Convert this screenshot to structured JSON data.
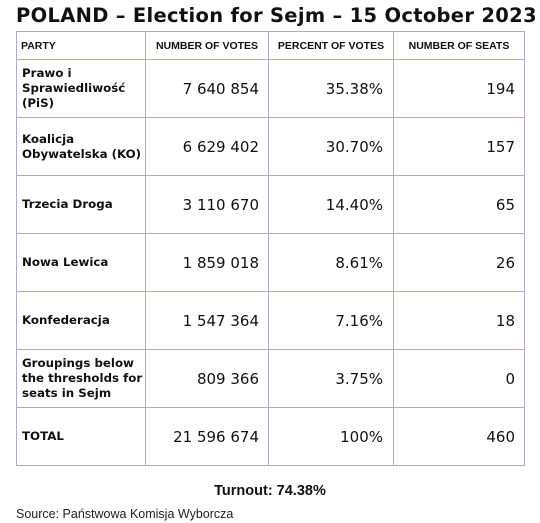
{
  "title": "POLAND – Election for Sejm – 15 October 2023",
  "table": {
    "headers": [
      "PARTY",
      "NUMBER OF VOTES",
      "PERCENT OF VOTES",
      "NUMBER OF SEATS"
    ],
    "rows": [
      {
        "party": "Prawo i Sprawiedliwość (PiS)",
        "votes": "7 640 854",
        "percent": "35.38%",
        "seats": "194"
      },
      {
        "party": "Koalicja Obywatelska (KO)",
        "votes": "6 629 402",
        "percent": "30.70%",
        "seats": "157"
      },
      {
        "party": "Trzecia Droga",
        "votes": "3 110 670",
        "percent": "14.40%",
        "seats": "65"
      },
      {
        "party": "Nowa Lewica",
        "votes": "1 859 018",
        "percent": "8.61%",
        "seats": "26"
      },
      {
        "party": "Konfederacja",
        "votes": "1 547 364",
        "percent": "7.16%",
        "seats": "18"
      },
      {
        "party": "Groupings below the thresholds for seats in Sejm",
        "votes": "809 366",
        "percent": "3.75%",
        "seats": "0"
      },
      {
        "party": "TOTAL",
        "votes": "21 596 674",
        "percent": "100%",
        "seats": "460"
      }
    ]
  },
  "turnout": "Turnout: 74.38%",
  "source": "Source: Państwowa Komisja Wyborcza"
}
